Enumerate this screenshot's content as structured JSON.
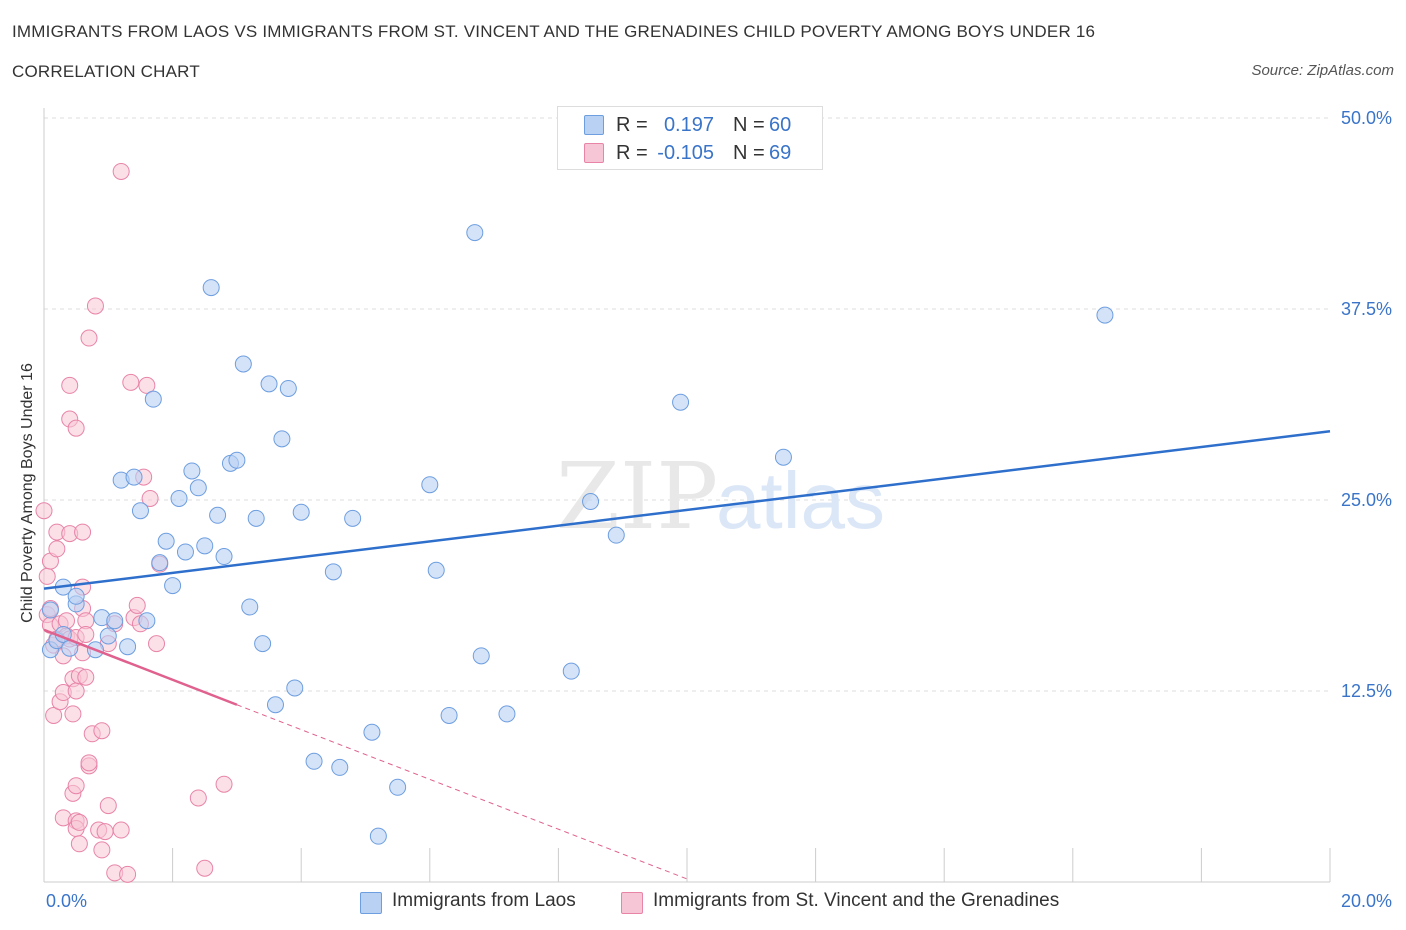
{
  "header": {
    "title": "IMMIGRANTS FROM LAOS VS IMMIGRANTS FROM ST. VINCENT AND THE GRENADINES CHILD POVERTY AMONG BOYS UNDER 16",
    "subtitle": "CORRELATION CHART",
    "source": "Source: ZipAtlas.com"
  },
  "legend": {
    "laos": {
      "r_label": "R =",
      "r_value": "0.197",
      "n_label": "N =",
      "n_value": "60"
    },
    "svg": {
      "r_label": "R =",
      "r_value": "-0.105",
      "n_label": "N =",
      "n_value": "69"
    }
  },
  "colors": {
    "laos_fill": "#b9d1f3",
    "laos_stroke": "#6d9ee0",
    "laos_line": "#2f6fcc",
    "svg_fill": "#f7c6d6",
    "svg_stroke": "#e884a8",
    "svg_line": "#e0608e",
    "tick_text": "#3a74c9",
    "grid": "#dedede"
  },
  "chart_data": {
    "type": "scatter",
    "title": "IMMIGRANTS FROM LAOS VS IMMIGRANTS FROM ST. VINCENT AND THE GRENADINES CHILD POVERTY AMONG BOYS UNDER 16",
    "xlabel": "",
    "ylabel": "Child Poverty Among Boys Under 16",
    "xlim": [
      0,
      20
    ],
    "ylim": [
      0,
      50
    ],
    "x_tick_labels": [
      "0.0%",
      "20.0%"
    ],
    "y_tick_labels": [
      "12.5%",
      "25.0%",
      "37.5%",
      "50.0%"
    ],
    "y_ticks": [
      12.5,
      25,
      37.5,
      50
    ],
    "grid": true,
    "legend_placement": "bottom",
    "watermark": {
      "zip": "ZIP",
      "atlas": "atlas"
    },
    "series": [
      {
        "name": "Immigrants from Laos",
        "trend": {
          "x": [
            0,
            20
          ],
          "y": [
            19.2,
            29.5
          ]
        },
        "points": [
          [
            0.1,
            17.8
          ],
          [
            0.1,
            15.2
          ],
          [
            0.2,
            15.8
          ],
          [
            0.3,
            16.2
          ],
          [
            0.3,
            19.3
          ],
          [
            0.4,
            15.3
          ],
          [
            0.5,
            18.2
          ],
          [
            0.5,
            18.7
          ],
          [
            0.8,
            15.2
          ],
          [
            1.0,
            16.1
          ],
          [
            0.9,
            17.3
          ],
          [
            1.1,
            17.1
          ],
          [
            1.2,
            26.3
          ],
          [
            1.3,
            15.4
          ],
          [
            1.4,
            26.5
          ],
          [
            1.5,
            24.3
          ],
          [
            1.6,
            17.1
          ],
          [
            1.7,
            31.6
          ],
          [
            1.8,
            20.9
          ],
          [
            1.9,
            22.3
          ],
          [
            2.0,
            19.4
          ],
          [
            2.1,
            25.1
          ],
          [
            2.2,
            21.6
          ],
          [
            2.3,
            26.9
          ],
          [
            2.4,
            25.8
          ],
          [
            2.5,
            22.0
          ],
          [
            2.6,
            38.9
          ],
          [
            2.7,
            24.0
          ],
          [
            2.8,
            21.3
          ],
          [
            2.9,
            27.4
          ],
          [
            3.0,
            27.6
          ],
          [
            3.1,
            33.9
          ],
          [
            3.2,
            18.0
          ],
          [
            3.3,
            23.8
          ],
          [
            3.4,
            15.6
          ],
          [
            3.5,
            32.6
          ],
          [
            3.6,
            11.6
          ],
          [
            3.7,
            29.0
          ],
          [
            3.8,
            32.3
          ],
          [
            3.9,
            12.7
          ],
          [
            4.0,
            24.2
          ],
          [
            4.2,
            7.9
          ],
          [
            4.5,
            20.3
          ],
          [
            4.6,
            7.5
          ],
          [
            4.8,
            23.8
          ],
          [
            5.1,
            9.8
          ],
          [
            5.2,
            3.0
          ],
          [
            5.5,
            6.2
          ],
          [
            6.0,
            26.0
          ],
          [
            6.1,
            20.4
          ],
          [
            6.3,
            10.9
          ],
          [
            6.7,
            42.5
          ],
          [
            6.8,
            14.8
          ],
          [
            7.2,
            11.0
          ],
          [
            8.2,
            13.8
          ],
          [
            8.5,
            24.9
          ],
          [
            8.9,
            22.7
          ],
          [
            9.9,
            31.4
          ],
          [
            11.5,
            27.8
          ],
          [
            16.5,
            37.1
          ]
        ]
      },
      {
        "name": "Immigrants from St. Vincent and the Grenadines",
        "trend": {
          "x": [
            0,
            3.0
          ],
          "y": [
            16.5,
            11.6
          ]
        },
        "trend_extension": {
          "x": [
            3.0,
            10.0
          ],
          "y": [
            11.6,
            0.2
          ]
        },
        "points": [
          [
            0.0,
            24.3
          ],
          [
            0.05,
            17.5
          ],
          [
            0.05,
            20.0
          ],
          [
            0.1,
            16.8
          ],
          [
            0.1,
            17.9
          ],
          [
            0.1,
            21.0
          ],
          [
            0.15,
            15.5
          ],
          [
            0.15,
            10.9
          ],
          [
            0.2,
            22.9
          ],
          [
            0.2,
            21.8
          ],
          [
            0.2,
            15.9
          ],
          [
            0.25,
            16.9
          ],
          [
            0.25,
            11.8
          ],
          [
            0.3,
            4.2
          ],
          [
            0.3,
            12.4
          ],
          [
            0.3,
            14.8
          ],
          [
            0.35,
            16.1
          ],
          [
            0.35,
            17.1
          ],
          [
            0.4,
            22.8
          ],
          [
            0.4,
            32.5
          ],
          [
            0.4,
            30.3
          ],
          [
            0.4,
            15.9
          ],
          [
            0.45,
            11.0
          ],
          [
            0.45,
            13.3
          ],
          [
            0.45,
            5.8
          ],
          [
            0.5,
            16.0
          ],
          [
            0.5,
            29.7
          ],
          [
            0.5,
            6.3
          ],
          [
            0.5,
            12.5
          ],
          [
            0.5,
            4.0
          ],
          [
            0.5,
            3.5
          ],
          [
            0.55,
            13.5
          ],
          [
            0.55,
            3.9
          ],
          [
            0.55,
            2.5
          ],
          [
            0.6,
            17.9
          ],
          [
            0.6,
            19.3
          ],
          [
            0.6,
            22.9
          ],
          [
            0.6,
            15.0
          ],
          [
            0.65,
            17.1
          ],
          [
            0.65,
            16.2
          ],
          [
            0.65,
            13.4
          ],
          [
            0.7,
            35.6
          ],
          [
            0.7,
            7.6
          ],
          [
            0.7,
            7.8
          ],
          [
            0.75,
            9.7
          ],
          [
            0.8,
            37.7
          ],
          [
            0.85,
            3.4
          ],
          [
            0.9,
            2.1
          ],
          [
            0.9,
            9.9
          ],
          [
            0.95,
            3.3
          ],
          [
            1.0,
            5.0
          ],
          [
            1.0,
            15.6
          ],
          [
            1.1,
            16.9
          ],
          [
            1.1,
            0.6
          ],
          [
            1.2,
            3.4
          ],
          [
            1.3,
            0.5
          ],
          [
            1.35,
            32.7
          ],
          [
            1.4,
            17.3
          ],
          [
            1.45,
            18.1
          ],
          [
            1.5,
            16.9
          ],
          [
            1.55,
            26.5
          ],
          [
            1.6,
            32.5
          ],
          [
            1.65,
            25.1
          ],
          [
            1.75,
            15.6
          ],
          [
            1.8,
            20.8
          ],
          [
            2.4,
            5.5
          ],
          [
            2.5,
            0.9
          ],
          [
            2.8,
            6.4
          ],
          [
            1.2,
            46.5
          ]
        ]
      }
    ]
  },
  "bottom_legend": {
    "laos_label": "Immigrants from Laos",
    "svg_label": "Immigrants from St. Vincent and the Grenadines"
  }
}
